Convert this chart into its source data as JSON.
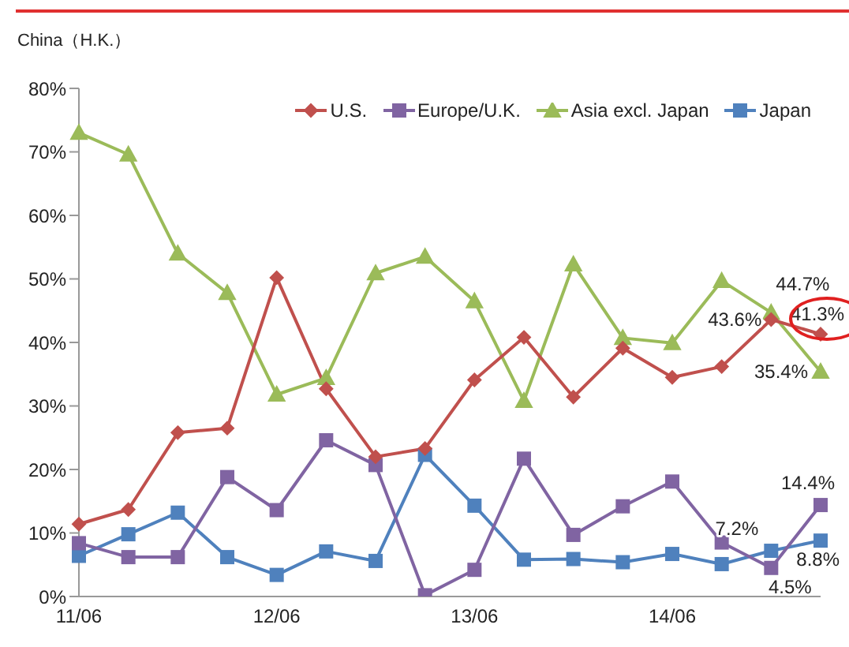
{
  "chart_data": {
    "type": "line",
    "title": "China（H.K.）",
    "categories": [
      "11/06",
      null,
      null,
      null,
      "12/06",
      null,
      null,
      null,
      "13/06",
      null,
      null,
      null,
      "14/06",
      null,
      null,
      null
    ],
    "series": [
      {
        "name": "U.S.",
        "color": "#c0504d",
        "marker": "diamond",
        "values": [
          11.4,
          13.7,
          25.8,
          26.5,
          50.2,
          32.7,
          22.0,
          23.3,
          34.1,
          40.8,
          31.4,
          39.1,
          34.5,
          36.2,
          43.6,
          41.3
        ],
        "value_labels": [
          null,
          null,
          null,
          null,
          null,
          null,
          null,
          null,
          null,
          null,
          null,
          null,
          null,
          null,
          "43.6%",
          "41.3%"
        ]
      },
      {
        "name": "Europe/U.K.",
        "color": "#8064a2",
        "marker": "square",
        "values": [
          8.4,
          6.2,
          6.2,
          18.8,
          13.6,
          24.6,
          20.7,
          0.2,
          4.2,
          21.7,
          9.7,
          14.2,
          18.1,
          8.5,
          4.5,
          14.4
        ],
        "value_labels": [
          null,
          null,
          null,
          null,
          null,
          null,
          null,
          null,
          null,
          null,
          null,
          null,
          null,
          null,
          "4.5%",
          "14.4%"
        ]
      },
      {
        "name": "Asia excl. Japan",
        "color": "#9bbb59",
        "marker": "triangle",
        "values": [
          73.0,
          69.6,
          54.0,
          47.8,
          31.8,
          34.4,
          50.9,
          53.5,
          46.5,
          30.8,
          52.3,
          40.7,
          39.9,
          49.7,
          44.7,
          35.4
        ],
        "value_labels": [
          null,
          null,
          null,
          null,
          null,
          null,
          null,
          null,
          null,
          null,
          null,
          null,
          null,
          null,
          "44.7%",
          "35.4%"
        ]
      },
      {
        "name": "Japan",
        "color": "#4f81bd",
        "marker": "square",
        "values": [
          6.4,
          9.8,
          13.2,
          6.2,
          3.4,
          7.1,
          5.6,
          22.3,
          14.3,
          5.8,
          5.9,
          5.4,
          6.7,
          5.1,
          7.2,
          8.8
        ],
        "value_labels": [
          null,
          null,
          null,
          null,
          null,
          null,
          null,
          null,
          null,
          null,
          null,
          null,
          null,
          null,
          "7.2%",
          "8.8%"
        ]
      }
    ],
    "ylim": [
      0,
      80
    ],
    "yticks": [
      {
        "value": 0,
        "label": "0%"
      },
      {
        "value": 10,
        "label": "10%"
      },
      {
        "value": 20,
        "label": "20%"
      },
      {
        "value": 30,
        "label": "30%"
      },
      {
        "value": 40,
        "label": "40%"
      },
      {
        "value": 50,
        "label": "50%"
      },
      {
        "value": 60,
        "label": "60%"
      },
      {
        "value": 70,
        "label": "70%"
      },
      {
        "value": 80,
        "label": "80%"
      }
    ],
    "grid": false,
    "legend": "top right",
    "line_style": "solid"
  }
}
